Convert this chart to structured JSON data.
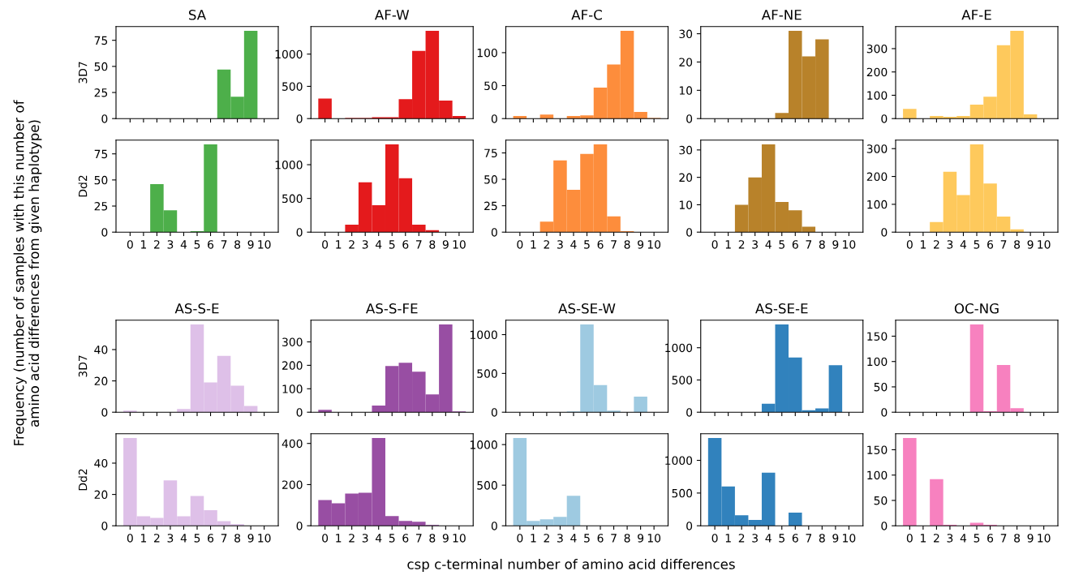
{
  "chart_data": [
    {
      "type": "histogram",
      "title": "SA",
      "ylabel": "3D7",
      "bins": [
        -0.5,
        0.5,
        1.5,
        2.5,
        3.5,
        4.5,
        5.5,
        6.5,
        7.5,
        8.5,
        9.5,
        10.5
      ],
      "values": [
        0,
        0,
        0,
        0,
        0,
        0,
        0,
        47,
        21,
        84,
        0
      ],
      "color": "#4daf4a",
      "xlim": [
        -1.05,
        11.05
      ],
      "xticks": [
        0,
        1,
        2,
        3,
        4,
        5,
        6,
        7,
        8,
        9,
        10
      ],
      "ylim": [
        0,
        88.2
      ],
      "yticks": [
        0,
        25,
        50,
        75
      ],
      "tick_labels": "y"
    },
    {
      "type": "histogram",
      "title": "AF-W",
      "bins": [
        -0.5,
        0.5,
        1.5,
        2.5,
        3.5,
        4.5,
        5.5,
        6.5,
        7.5,
        8.5,
        9.5,
        10.5
      ],
      "values": [
        310,
        0,
        10,
        10,
        20,
        20,
        300,
        1050,
        1360,
        280,
        40
      ],
      "color": "#e41a1c",
      "xlim": [
        -1.05,
        11.05
      ],
      "xticks": [
        0,
        1,
        2,
        3,
        4,
        5,
        6,
        7,
        8,
        9,
        10
      ],
      "ylim": [
        0,
        1428
      ],
      "yticks": [
        0,
        500,
        1000
      ],
      "tick_labels": "y"
    },
    {
      "type": "histogram",
      "title": "AF-C",
      "bins": [
        -0.5,
        0.5,
        1.5,
        2.5,
        3.5,
        4.5,
        5.5,
        6.5,
        7.5,
        8.5,
        9.5,
        10.5
      ],
      "values": [
        4,
        0,
        6,
        0,
        4,
        5,
        47,
        82,
        133,
        10,
        1
      ],
      "color": "#fd8d3c",
      "xlim": [
        -1.05,
        11.05
      ],
      "xticks": [
        0,
        1,
        2,
        3,
        4,
        5,
        6,
        7,
        8,
        9,
        10
      ],
      "ylim": [
        0,
        139.65
      ],
      "yticks": [
        0,
        50,
        100
      ],
      "tick_labels": "y"
    },
    {
      "type": "histogram",
      "title": "AF-NE",
      "bins": [
        -0.5,
        0.5,
        1.5,
        2.5,
        3.5,
        4.5,
        5.5,
        6.5,
        7.5,
        8.5,
        9.5,
        10.5
      ],
      "values": [
        0,
        0,
        0,
        0,
        0,
        2,
        31,
        22,
        28,
        0,
        0
      ],
      "color": "#b8822a",
      "xlim": [
        -1.05,
        11.05
      ],
      "xticks": [
        0,
        1,
        2,
        3,
        4,
        5,
        6,
        7,
        8,
        9,
        10
      ],
      "ylim": [
        0,
        32.55
      ],
      "yticks": [
        0,
        10,
        20,
        30
      ],
      "tick_labels": "y"
    },
    {
      "type": "histogram",
      "title": "AF-E",
      "bins": [
        -0.5,
        0.5,
        1.5,
        2.5,
        3.5,
        4.5,
        5.5,
        6.5,
        7.5,
        8.5,
        9.5,
        10.5
      ],
      "values": [
        42,
        0,
        11,
        8,
        11,
        60,
        94,
        315,
        376,
        18,
        0
      ],
      "color": "#fec95c",
      "xlim": [
        -1.05,
        11.05
      ],
      "xticks": [
        0,
        1,
        2,
        3,
        4,
        5,
        6,
        7,
        8,
        9,
        10
      ],
      "ylim": [
        0,
        394.8
      ],
      "yticks": [
        0,
        100,
        200,
        300
      ],
      "tick_labels": "y"
    },
    {
      "type": "histogram",
      "ylabel": "Dd2",
      "bins": [
        -0.5,
        0.5,
        1.5,
        2.5,
        3.5,
        4.5,
        5.5,
        6.5,
        7.5,
        8.5,
        9.5,
        10.5
      ],
      "values": [
        0,
        0,
        46,
        21,
        0,
        1,
        84,
        0,
        0,
        0,
        0
      ],
      "color": "#4daf4a",
      "xlim": [
        -1.05,
        11.05
      ],
      "xticks": [
        0,
        1,
        2,
        3,
        4,
        5,
        6,
        7,
        8,
        9,
        10
      ],
      "ylim": [
        0,
        88.2
      ],
      "yticks": [
        0,
        25,
        50,
        75
      ]
    },
    {
      "type": "histogram",
      "bins": [
        -0.5,
        0.5,
        1.5,
        2.5,
        3.5,
        4.5,
        5.5,
        6.5,
        7.5,
        8.5,
        9.5,
        10.5
      ],
      "values": [
        0,
        0,
        110,
        740,
        400,
        1300,
        800,
        110,
        30,
        0,
        0
      ],
      "color": "#e41a1c",
      "xlim": [
        -1.05,
        11.05
      ],
      "xticks": [
        0,
        1,
        2,
        3,
        4,
        5,
        6,
        7,
        8,
        9,
        10
      ],
      "ylim": [
        0,
        1365
      ],
      "yticks": [
        0,
        500,
        1000
      ]
    },
    {
      "type": "histogram",
      "bins": [
        -0.5,
        0.5,
        1.5,
        2.5,
        3.5,
        4.5,
        5.5,
        6.5,
        7.5,
        8.5,
        9.5,
        10.5
      ],
      "values": [
        0,
        0,
        10,
        68,
        40,
        74,
        83,
        15,
        1,
        0,
        0
      ],
      "color": "#fd8d3c",
      "xlim": [
        -1.05,
        11.05
      ],
      "xticks": [
        0,
        1,
        2,
        3,
        4,
        5,
        6,
        7,
        8,
        9,
        10
      ],
      "ylim": [
        0,
        87.15
      ],
      "yticks": [
        0,
        25,
        50,
        75
      ]
    },
    {
      "type": "histogram",
      "bins": [
        -0.5,
        0.5,
        1.5,
        2.5,
        3.5,
        4.5,
        5.5,
        6.5,
        7.5,
        8.5,
        9.5,
        10.5
      ],
      "values": [
        0,
        0,
        10,
        20,
        32,
        11,
        8,
        2,
        0,
        0,
        0
      ],
      "color": "#b8822a",
      "xlim": [
        -1.05,
        11.05
      ],
      "xticks": [
        0,
        1,
        2,
        3,
        4,
        5,
        6,
        7,
        8,
        9,
        10
      ],
      "ylim": [
        0,
        33.6
      ],
      "yticks": [
        0,
        10,
        20,
        30
      ]
    },
    {
      "type": "histogram",
      "bins": [
        -0.5,
        0.5,
        1.5,
        2.5,
        3.5,
        4.5,
        5.5,
        6.5,
        7.5,
        8.5,
        9.5,
        10.5
      ],
      "values": [
        0,
        0,
        36,
        217,
        133,
        315,
        175,
        56,
        10,
        0,
        0
      ],
      "color": "#fec95c",
      "xlim": [
        -1.05,
        11.05
      ],
      "xticks": [
        0,
        1,
        2,
        3,
        4,
        5,
        6,
        7,
        8,
        9,
        10
      ],
      "ylim": [
        0,
        330.75
      ],
      "yticks": [
        0,
        100,
        200,
        300
      ]
    },
    {
      "type": "histogram",
      "title": "AS-S-E",
      "ylabel": "3D7",
      "bins": [
        -0.5,
        0.5,
        1.5,
        2.5,
        3.5,
        4.5,
        5.5,
        6.5,
        7.5,
        8.5,
        9.5,
        10.5
      ],
      "values": [
        1,
        0,
        0,
        0,
        2,
        56,
        19,
        36,
        17,
        4,
        0
      ],
      "color": "#dec0e8",
      "xlim": [
        -1.05,
        11.05
      ],
      "xticks": [
        0,
        1,
        2,
        3,
        4,
        5,
        6,
        7,
        8,
        9,
        10
      ],
      "ylim": [
        0,
        58.8
      ],
      "yticks": [
        0,
        20,
        40
      ],
      "tick_labels": "y"
    },
    {
      "type": "histogram",
      "title": "AS-S-FE",
      "bins": [
        -0.5,
        0.5,
        1.5,
        2.5,
        3.5,
        4.5,
        5.5,
        6.5,
        7.5,
        8.5,
        9.5,
        10.5
      ],
      "values": [
        10,
        0,
        0,
        0,
        28,
        197,
        211,
        173,
        76,
        374,
        3
      ],
      "color": "#984ea3",
      "xlim": [
        -1.05,
        11.05
      ],
      "xticks": [
        0,
        1,
        2,
        3,
        4,
        5,
        6,
        7,
        8,
        9,
        10
      ],
      "ylim": [
        0,
        392.7
      ],
      "yticks": [
        0,
        100,
        200,
        300
      ],
      "tick_labels": "y"
    },
    {
      "type": "histogram",
      "title": "AS-SE-W",
      "bins": [
        -0.5,
        0.5,
        1.5,
        2.5,
        3.5,
        4.5,
        5.5,
        6.5,
        7.5,
        8.5,
        9.5,
        10.5
      ],
      "values": [
        0,
        0,
        0,
        0,
        10,
        1130,
        350,
        20,
        0,
        200,
        0
      ],
      "color": "#9ecae1",
      "xlim": [
        -1.05,
        11.05
      ],
      "xticks": [
        0,
        1,
        2,
        3,
        4,
        5,
        6,
        7,
        8,
        9,
        10
      ],
      "ylim": [
        0,
        1186.5
      ],
      "yticks": [
        0,
        500,
        1000
      ],
      "tick_labels": "y"
    },
    {
      "type": "histogram",
      "title": "AS-SE-E",
      "bins": [
        -0.5,
        0.5,
        1.5,
        2.5,
        3.5,
        4.5,
        5.5,
        6.5,
        7.5,
        8.5,
        9.5,
        10.5
      ],
      "values": [
        0,
        0,
        0,
        0,
        130,
        1360,
        850,
        30,
        60,
        730,
        0
      ],
      "color": "#3182bd",
      "xlim": [
        -1.05,
        11.05
      ],
      "xticks": [
        0,
        1,
        2,
        3,
        4,
        5,
        6,
        7,
        8,
        9,
        10
      ],
      "ylim": [
        0,
        1428
      ],
      "yticks": [
        0,
        500,
        1000
      ],
      "tick_labels": "y"
    },
    {
      "type": "histogram",
      "title": "OC-NG",
      "bins": [
        -0.5,
        0.5,
        1.5,
        2.5,
        3.5,
        4.5,
        5.5,
        6.5,
        7.5,
        8.5,
        9.5,
        10.5
      ],
      "values": [
        0,
        0,
        0,
        0,
        0,
        173,
        2,
        93,
        8,
        0,
        0
      ],
      "color": "#f781bf",
      "xlim": [
        -1.05,
        11.05
      ],
      "xticks": [
        0,
        1,
        2,
        3,
        4,
        5,
        6,
        7,
        8,
        9,
        10
      ],
      "ylim": [
        0,
        181.65
      ],
      "yticks": [
        0,
        50,
        100,
        150
      ],
      "tick_labels": "y"
    },
    {
      "type": "histogram",
      "ylabel": "Dd2",
      "bins": [
        -0.5,
        0.5,
        1.5,
        2.5,
        3.5,
        4.5,
        5.5,
        6.5,
        7.5,
        8.5,
        9.5,
        10.5
      ],
      "values": [
        56,
        6,
        5,
        29,
        6,
        19,
        10,
        3,
        1,
        0,
        0
      ],
      "color": "#dec0e8",
      "xlim": [
        -1.05,
        11.05
      ],
      "xticks": [
        0,
        1,
        2,
        3,
        4,
        5,
        6,
        7,
        8,
        9,
        10
      ],
      "ylim": [
        0,
        58.8
      ],
      "yticks": [
        0,
        20,
        40
      ]
    },
    {
      "type": "histogram",
      "bins": [
        -0.5,
        0.5,
        1.5,
        2.5,
        3.5,
        4.5,
        5.5,
        6.5,
        7.5,
        8.5,
        9.5,
        10.5
      ],
      "values": [
        125,
        109,
        156,
        160,
        426,
        47,
        23,
        20,
        4,
        0,
        0
      ],
      "color": "#984ea3",
      "xlim": [
        -1.05,
        11.05
      ],
      "xticks": [
        0,
        1,
        2,
        3,
        4,
        5,
        6,
        7,
        8,
        9,
        10
      ],
      "ylim": [
        0,
        447.3
      ],
      "yticks": [
        0,
        200,
        400
      ]
    },
    {
      "type": "histogram",
      "bins": [
        -0.5,
        0.5,
        1.5,
        2.5,
        3.5,
        4.5,
        5.5,
        6.5,
        7.5,
        8.5,
        9.5,
        10.5
      ],
      "values": [
        1080,
        60,
        80,
        110,
        370,
        0,
        0,
        0,
        0,
        0,
        0
      ],
      "color": "#9ecae1",
      "xlim": [
        -1.05,
        11.05
      ],
      "xticks": [
        0,
        1,
        2,
        3,
        4,
        5,
        6,
        7,
        8,
        9,
        10
      ],
      "ylim": [
        0,
        1134
      ],
      "yticks": [
        0,
        500,
        1000
      ]
    },
    {
      "type": "histogram",
      "bins": [
        -0.5,
        0.5,
        1.5,
        2.5,
        3.5,
        4.5,
        5.5,
        6.5,
        7.5,
        8.5,
        9.5,
        10.5
      ],
      "values": [
        1340,
        600,
        160,
        90,
        810,
        0,
        200,
        0,
        0,
        0,
        0
      ],
      "color": "#3182bd",
      "xlim": [
        -1.05,
        11.05
      ],
      "xticks": [
        0,
        1,
        2,
        3,
        4,
        5,
        6,
        7,
        8,
        9,
        10
      ],
      "ylim": [
        0,
        1407
      ],
      "yticks": [
        0,
        500,
        1000
      ]
    },
    {
      "type": "histogram",
      "bins": [
        -0.5,
        0.5,
        1.5,
        2.5,
        3.5,
        4.5,
        5.5,
        6.5,
        7.5,
        8.5,
        9.5,
        10.5
      ],
      "values": [
        173,
        0,
        92,
        2,
        0,
        6,
        2,
        0,
        0,
        0,
        0
      ],
      "color": "#f781bf",
      "xlim": [
        -1.05,
        11.05
      ],
      "xticks": [
        0,
        1,
        2,
        3,
        4,
        5,
        6,
        7,
        8,
        9,
        10
      ],
      "ylim": [
        0,
        181.65
      ],
      "yticks": [
        0,
        50,
        100,
        150
      ]
    },
    {
      "type": "other",
      "xlabel": "csp c-terminal number of amino acid differences",
      "ylabel": "Frequency (number of samples with this number of\namino acid differences from given haplotype)"
    }
  ]
}
